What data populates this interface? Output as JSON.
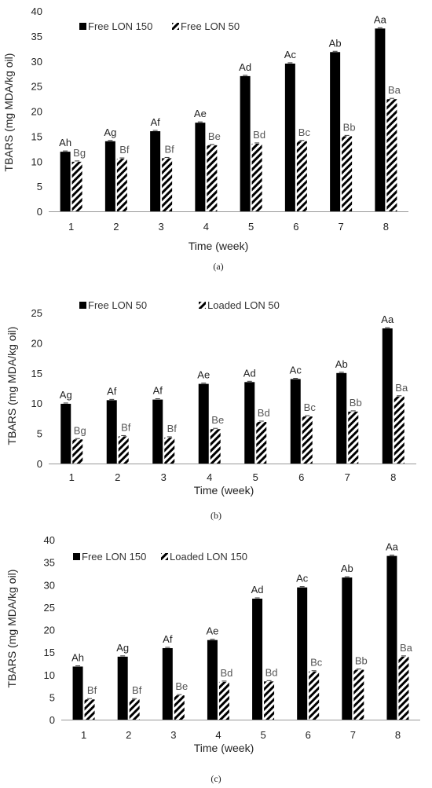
{
  "colors": {
    "solid": "#000000",
    "hatch": "#000000",
    "axis": "#999999",
    "text": "#222222",
    "label_light": "#555555"
  },
  "chart_data": [
    {
      "type": "bar",
      "panel_label": "(a)",
      "xlabel": "Time (week)",
      "ylabel": "TBARS (mg MDA/kg oil)",
      "ylim": [
        0,
        40
      ],
      "yticks": [
        0,
        5,
        10,
        15,
        20,
        25,
        30,
        35,
        40
      ],
      "categories": [
        "1",
        "2",
        "3",
        "4",
        "5",
        "6",
        "7",
        "8"
      ],
      "legend": "top-left",
      "series": [
        {
          "name": "Free LON 150",
          "style": "solid",
          "values": [
            11.9,
            14.0,
            16.0,
            17.7,
            27.0,
            29.5,
            31.8,
            36.5
          ],
          "labels": [
            "Ah",
            "Ag",
            "Af",
            "Ae",
            "Ad",
            "Ac",
            "Ab",
            "Aa"
          ]
        },
        {
          "name": "Free LON 50",
          "style": "hatch",
          "values": [
            9.9,
            10.5,
            10.6,
            13.2,
            13.5,
            14.0,
            15.0,
            22.4
          ],
          "labels": [
            "Bg",
            "Bf",
            "Bf",
            "Be",
            "Bd",
            "Bc",
            "Bb",
            "Ba"
          ]
        }
      ]
    },
    {
      "type": "bar",
      "panel_label": "(b)",
      "xlabel": "Time (week)",
      "ylabel": "TBARS (mg MDA/kg oil)",
      "ylim": [
        0,
        25
      ],
      "yticks": [
        0,
        5,
        10,
        15,
        20,
        25
      ],
      "categories": [
        "1",
        "2",
        "3",
        "4",
        "5",
        "6",
        "7",
        "8"
      ],
      "legend": "top",
      "series": [
        {
          "name": "Free LON 50",
          "style": "solid",
          "values": [
            9.9,
            10.5,
            10.6,
            13.2,
            13.5,
            14.0,
            15.0,
            22.4
          ],
          "labels": [
            "Ag",
            "Af",
            "Af",
            "Ae",
            "Ad",
            "Ac",
            "Ab",
            "Aa"
          ]
        },
        {
          "name": "Loaded LON 50",
          "style": "hatch",
          "values": [
            4.0,
            4.5,
            4.3,
            5.7,
            6.9,
            7.8,
            8.6,
            11.1
          ],
          "labels": [
            "Bg",
            "Bf",
            "Bf",
            "Be",
            "Bd",
            "Bc",
            "Bb",
            "Ba"
          ]
        }
      ]
    },
    {
      "type": "bar",
      "panel_label": "(c)",
      "xlabel": "Time (week)",
      "ylabel": "TBARS (mg MDA/kg oil)",
      "ylim": [
        0,
        40
      ],
      "yticks": [
        0,
        5,
        10,
        15,
        20,
        25,
        30,
        35,
        40
      ],
      "categories": [
        "1",
        "2",
        "3",
        "4",
        "5",
        "6",
        "7",
        "8"
      ],
      "legend": "top-left",
      "series": [
        {
          "name": "Free LON 150",
          "style": "solid",
          "values": [
            11.8,
            14.0,
            15.9,
            17.7,
            26.9,
            29.4,
            31.6,
            36.4
          ],
          "labels": [
            "Ah",
            "Ag",
            "Af",
            "Ae",
            "Ad",
            "Ac",
            "Ab",
            "Aa"
          ]
        },
        {
          "name": "Loaded LON 150",
          "style": "hatch",
          "values": [
            4.5,
            4.5,
            5.4,
            8.4,
            8.5,
            10.7,
            11.1,
            14.0
          ],
          "labels": [
            "Bf",
            "Bf",
            "Be",
            "Bd",
            "Bd",
            "Bc",
            "Bb",
            "Ba"
          ]
        }
      ]
    }
  ]
}
